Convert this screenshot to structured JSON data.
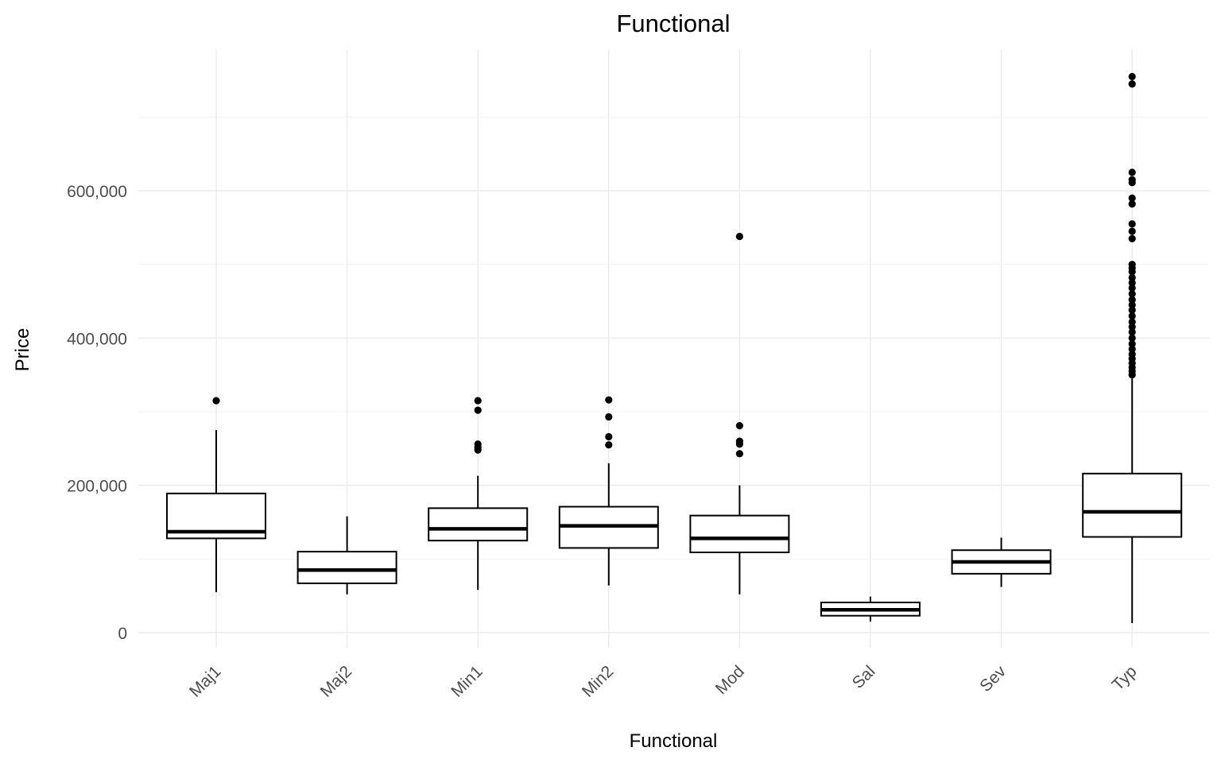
{
  "chart_data": {
    "type": "boxplot",
    "title": "Functional",
    "xlabel": "Functional",
    "ylabel": "Price",
    "ylim": [
      -20000,
      790000
    ],
    "yticks": [
      0,
      200000,
      400000,
      600000
    ],
    "ytick_labels": [
      "0",
      "200,000",
      "400,000",
      "600,000"
    ],
    "grid": true,
    "categories": [
      "Maj1",
      "Maj2",
      "Min1",
      "Min2",
      "Mod",
      "Sal",
      "Sev",
      "Typ"
    ],
    "boxes": [
      {
        "category": "Maj1",
        "whisker_low": 55000,
        "q1": 128000,
        "median": 137000,
        "q3": 189000,
        "whisker_high": 275000,
        "outliers": [
          315000
        ]
      },
      {
        "category": "Maj2",
        "whisker_low": 52000,
        "q1": 67000,
        "median": 85000,
        "q3": 110000,
        "whisker_high": 158000,
        "outliers": []
      },
      {
        "category": "Min1",
        "whisker_low": 58000,
        "q1": 125000,
        "median": 141000,
        "q3": 169000,
        "whisker_high": 213000,
        "outliers": [
          248000,
          252000,
          256000,
          302000,
          315000
        ]
      },
      {
        "category": "Min2",
        "whisker_low": 64000,
        "q1": 115000,
        "median": 145000,
        "q3": 171000,
        "whisker_high": 230000,
        "outliers": [
          255000,
          266000,
          293000,
          316000
        ]
      },
      {
        "category": "Mod",
        "whisker_low": 52000,
        "q1": 109000,
        "median": 128000,
        "q3": 159000,
        "whisker_high": 200000,
        "outliers": [
          243000,
          256000,
          260000,
          281000,
          538000
        ]
      },
      {
        "category": "Sal",
        "whisker_low": 15000,
        "q1": 23000,
        "median": 31000,
        "q3": 41000,
        "whisker_high": 49000,
        "outliers": []
      },
      {
        "category": "Sev",
        "whisker_low": 62000,
        "q1": 80000,
        "median": 96000,
        "q3": 112000,
        "whisker_high": 129000,
        "outliers": []
      },
      {
        "category": "Typ",
        "whisker_low": 13000,
        "q1": 130000,
        "median": 164000,
        "q3": 216000,
        "whisker_high": 345000,
        "outliers": [
          350000,
          355000,
          360000,
          366000,
          372000,
          378000,
          385000,
          392000,
          400000,
          408000,
          415000,
          422000,
          430000,
          438000,
          445000,
          452000,
          460000,
          468000,
          475000,
          482000,
          490000,
          495000,
          500000,
          535000,
          545000,
          555000,
          582000,
          590000,
          611000,
          615000,
          625000,
          745000,
          755000
        ]
      }
    ]
  }
}
